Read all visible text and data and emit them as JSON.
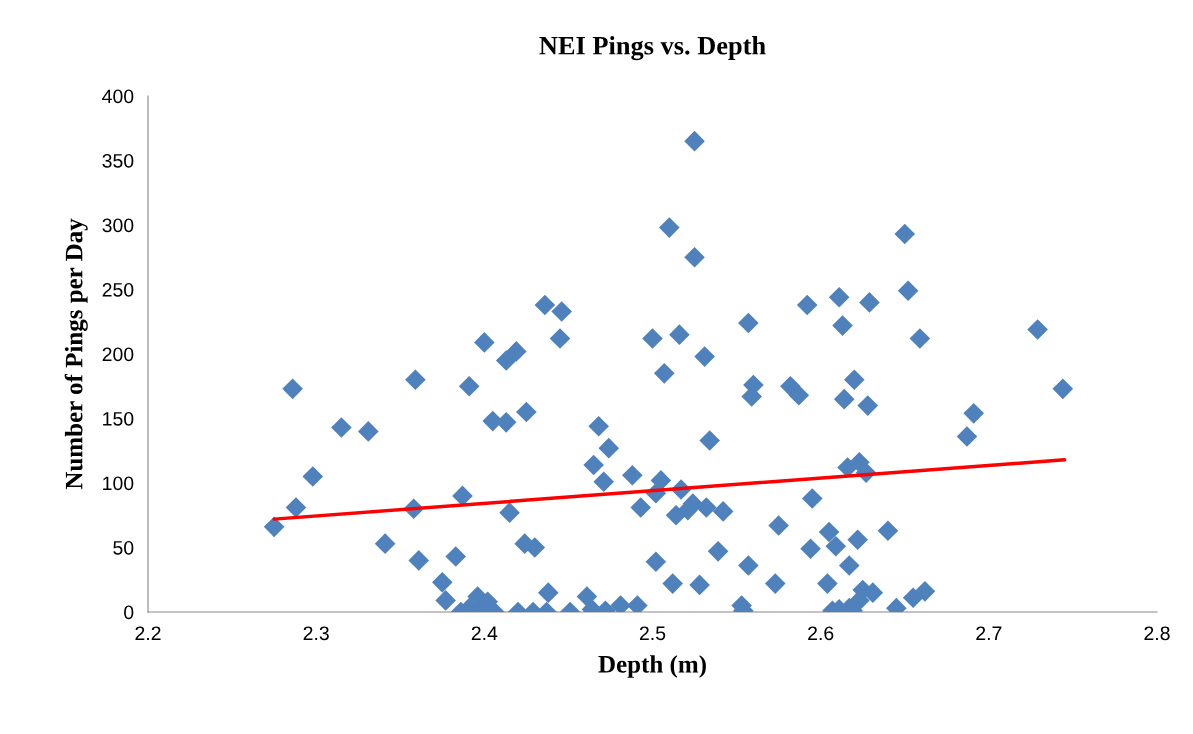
{
  "chart_data": {
    "type": "scatter",
    "title": "NEI Pings vs. Depth",
    "xlabel": "Depth (m)",
    "ylabel": "Number of Pings per Day",
    "xlim": [
      2.2,
      2.8
    ],
    "xticks": [
      {
        "value": 2.2,
        "label": "2.2"
      },
      {
        "value": 2.3,
        "label": "2.3"
      },
      {
        "value": 2.4,
        "label": "2.4"
      },
      {
        "value": 2.5,
        "label": "2.5"
      },
      {
        "value": 2.6,
        "label": "2.6"
      },
      {
        "value": 2.7,
        "label": "2.7"
      },
      {
        "value": 2.8,
        "label": "2.8"
      }
    ],
    "ylim": [
      0,
      400
    ],
    "yticks": [
      0,
      50,
      100,
      150,
      200,
      250,
      300,
      350,
      400
    ],
    "grid": false,
    "legend": false,
    "series": [
      {
        "marker": "diamond",
        "color": "#4f81bd",
        "x": [
          2.275,
          2.286,
          2.288,
          2.298,
          2.315,
          2.331,
          2.341,
          2.359,
          2.358,
          2.361,
          2.375,
          2.377,
          2.383,
          2.387,
          2.391,
          2.4,
          2.405,
          2.413,
          2.413,
          2.419,
          2.425,
          2.415,
          2.424,
          2.43,
          2.438,
          2.436,
          2.446,
          2.445,
          2.386,
          2.391,
          2.396,
          2.399,
          2.402,
          2.406,
          2.42,
          2.429,
          2.437,
          2.451,
          2.525,
          2.51,
          2.525,
          2.5,
          2.516,
          2.507,
          2.531,
          2.557,
          2.56,
          2.559,
          2.582,
          2.587,
          2.592,
          2.611,
          2.629,
          2.613,
          2.62,
          2.614,
          2.628,
          2.468,
          2.474,
          2.465,
          2.471,
          2.488,
          2.505,
          2.502,
          2.493,
          2.517,
          2.514,
          2.524,
          2.521,
          2.532,
          2.542,
          2.534,
          2.595,
          2.616,
          2.623,
          2.627,
          2.575,
          2.605,
          2.609,
          2.594,
          2.622,
          2.617,
          2.64,
          2.539,
          2.502,
          2.557,
          2.512,
          2.528,
          2.573,
          2.604,
          2.625,
          2.631,
          2.461,
          2.464,
          2.472,
          2.481,
          2.491,
          2.553,
          2.554,
          2.607,
          2.611,
          2.617,
          2.619,
          2.623,
          2.65,
          2.652,
          2.659,
          2.729,
          2.744,
          2.691,
          2.687,
          2.645,
          2.655,
          2.662
        ],
        "values": [
          66,
          173,
          81,
          105,
          143,
          140,
          53,
          180,
          80,
          40,
          23,
          9,
          43,
          90,
          175,
          209,
          148,
          147,
          195,
          202,
          155,
          77,
          53,
          50,
          15,
          238,
          233,
          212,
          0,
          3,
          12,
          3,
          8,
          0,
          0,
          0,
          0,
          0,
          365,
          298,
          275,
          212,
          215,
          185,
          198,
          224,
          176,
          167,
          175,
          168,
          238,
          244,
          240,
          222,
          180,
          165,
          160,
          144,
          127,
          114,
          101,
          106,
          102,
          92,
          81,
          95,
          75,
          84,
          79,
          81,
          78,
          133,
          88,
          112,
          116,
          108,
          67,
          62,
          51,
          49,
          56,
          36,
          63,
          47,
          39,
          36,
          22,
          21,
          22,
          22,
          17,
          15,
          12,
          2,
          1,
          5,
          5,
          5,
          1,
          1,
          2,
          3,
          1,
          9,
          293,
          249,
          212,
          219,
          173,
          154,
          136,
          3,
          11,
          16
        ]
      },
      {
        "type": "line",
        "color": "#ff0000",
        "x": [
          2.275,
          2.745
        ],
        "values": [
          72,
          118
        ]
      }
    ]
  }
}
